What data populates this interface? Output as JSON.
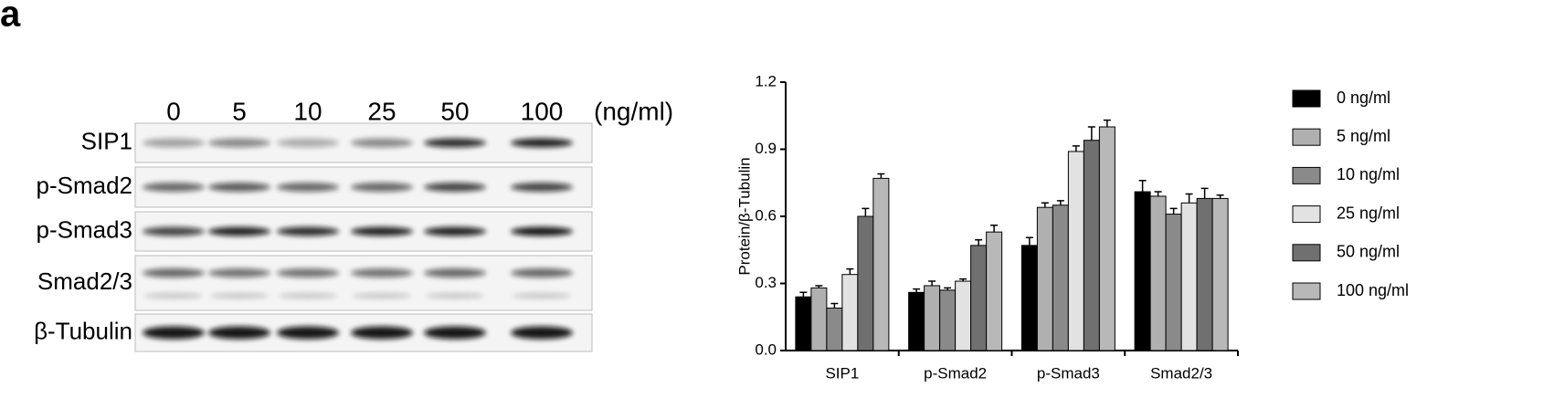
{
  "panel_label": "a",
  "blot": {
    "lanes": [
      "0",
      "5",
      "10",
      "25",
      "50",
      "100"
    ],
    "unit": "(ng/ml)",
    "rows": [
      "SIP1",
      "p-Smad2",
      "p-Smad3",
      "Smad2/3",
      "β-Tubulin"
    ]
  },
  "chart_data": {
    "type": "bar",
    "ylabel": "Protein/β-Tubulin",
    "categories": [
      "SIP1",
      "p-Smad2",
      "p-Smad3",
      "Smad2/3"
    ],
    "series": [
      {
        "name": "0 ng/ml",
        "color": "#000000",
        "values": [
          0.24,
          0.26,
          0.47,
          0.71
        ],
        "errors": [
          0.02,
          0.015,
          0.035,
          0.05
        ]
      },
      {
        "name": "5 ng/ml",
        "color": "#b0b0b0",
        "values": [
          0.28,
          0.29,
          0.64,
          0.69
        ],
        "errors": [
          0.01,
          0.02,
          0.02,
          0.02
        ]
      },
      {
        "name": "10 ng/ml",
        "color": "#8a8a8a",
        "values": [
          0.19,
          0.27,
          0.65,
          0.61
        ],
        "errors": [
          0.02,
          0.01,
          0.02,
          0.025
        ]
      },
      {
        "name": "25 ng/ml",
        "color": "#e2e2e2",
        "values": [
          0.34,
          0.31,
          0.89,
          0.66
        ],
        "errors": [
          0.025,
          0.01,
          0.025,
          0.04
        ]
      },
      {
        "name": "50 ng/ml",
        "color": "#707070",
        "values": [
          0.6,
          0.47,
          0.94,
          0.68
        ],
        "errors": [
          0.035,
          0.025,
          0.06,
          0.045
        ]
      },
      {
        "name": "100 ng/ml",
        "color": "#b8b8b8",
        "values": [
          0.77,
          0.53,
          1.0,
          0.68
        ],
        "errors": [
          0.02,
          0.03,
          0.03,
          0.015
        ]
      }
    ],
    "ylim": [
      0,
      1.2
    ],
    "yticks": [
      {
        "value": 0,
        "label": "0.0"
      },
      0.3,
      0.6,
      0.9,
      1.2
    ],
    "legend": "right"
  }
}
